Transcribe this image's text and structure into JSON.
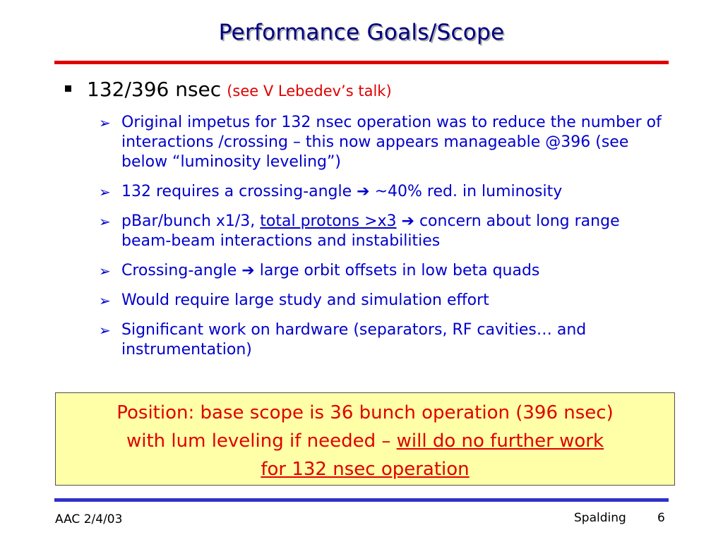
{
  "slide": {
    "title": "Performance Goals/Scope",
    "main_point": {
      "label": "132/396 nsec",
      "note": "(see V Lebedev’s talk)"
    },
    "sub_points": [
      {
        "text": "Original impetus for 132 nsec operation was to reduce the number of interactions /crossing – this now appears manageable @396 (see below “luminosity leveling”)"
      },
      {
        "text_a": "132 requires a crossing-angle ",
        "arrow": "➔",
        "text_b": " ~40% red. in luminosity"
      },
      {
        "text_a": "pBar/bunch x1/3, ",
        "underlined": "total protons >x3",
        "arrow": "➔",
        "text_b": " concern about long range beam-beam interactions and instabilities"
      },
      {
        "text_a": "Crossing-angle ",
        "arrow": "➔",
        "text_b": " large orbit offsets in low beta quads"
      },
      {
        "text": "Would require large study and simulation effort"
      },
      {
        "text": "Significant work on hardware (separators, RF cavities… and instrumentation)"
      }
    ],
    "position_box": {
      "line1": "Position: base scope is 36 bunch operation (396 nsec)",
      "line2_plain": "with lum leveling if needed – ",
      "line2_underlined": "will do no further work",
      "line3_underlined": "for 132 nsec operation"
    },
    "footer": {
      "date": "AAC 2/4/03",
      "author": "Spalding",
      "page": "6"
    },
    "colors": {
      "title": "#000080",
      "sub_points": "#0000cc",
      "accent_red": "#e00000",
      "box_background": "#ffffa8",
      "footer_rule": "#3030cc"
    }
  }
}
